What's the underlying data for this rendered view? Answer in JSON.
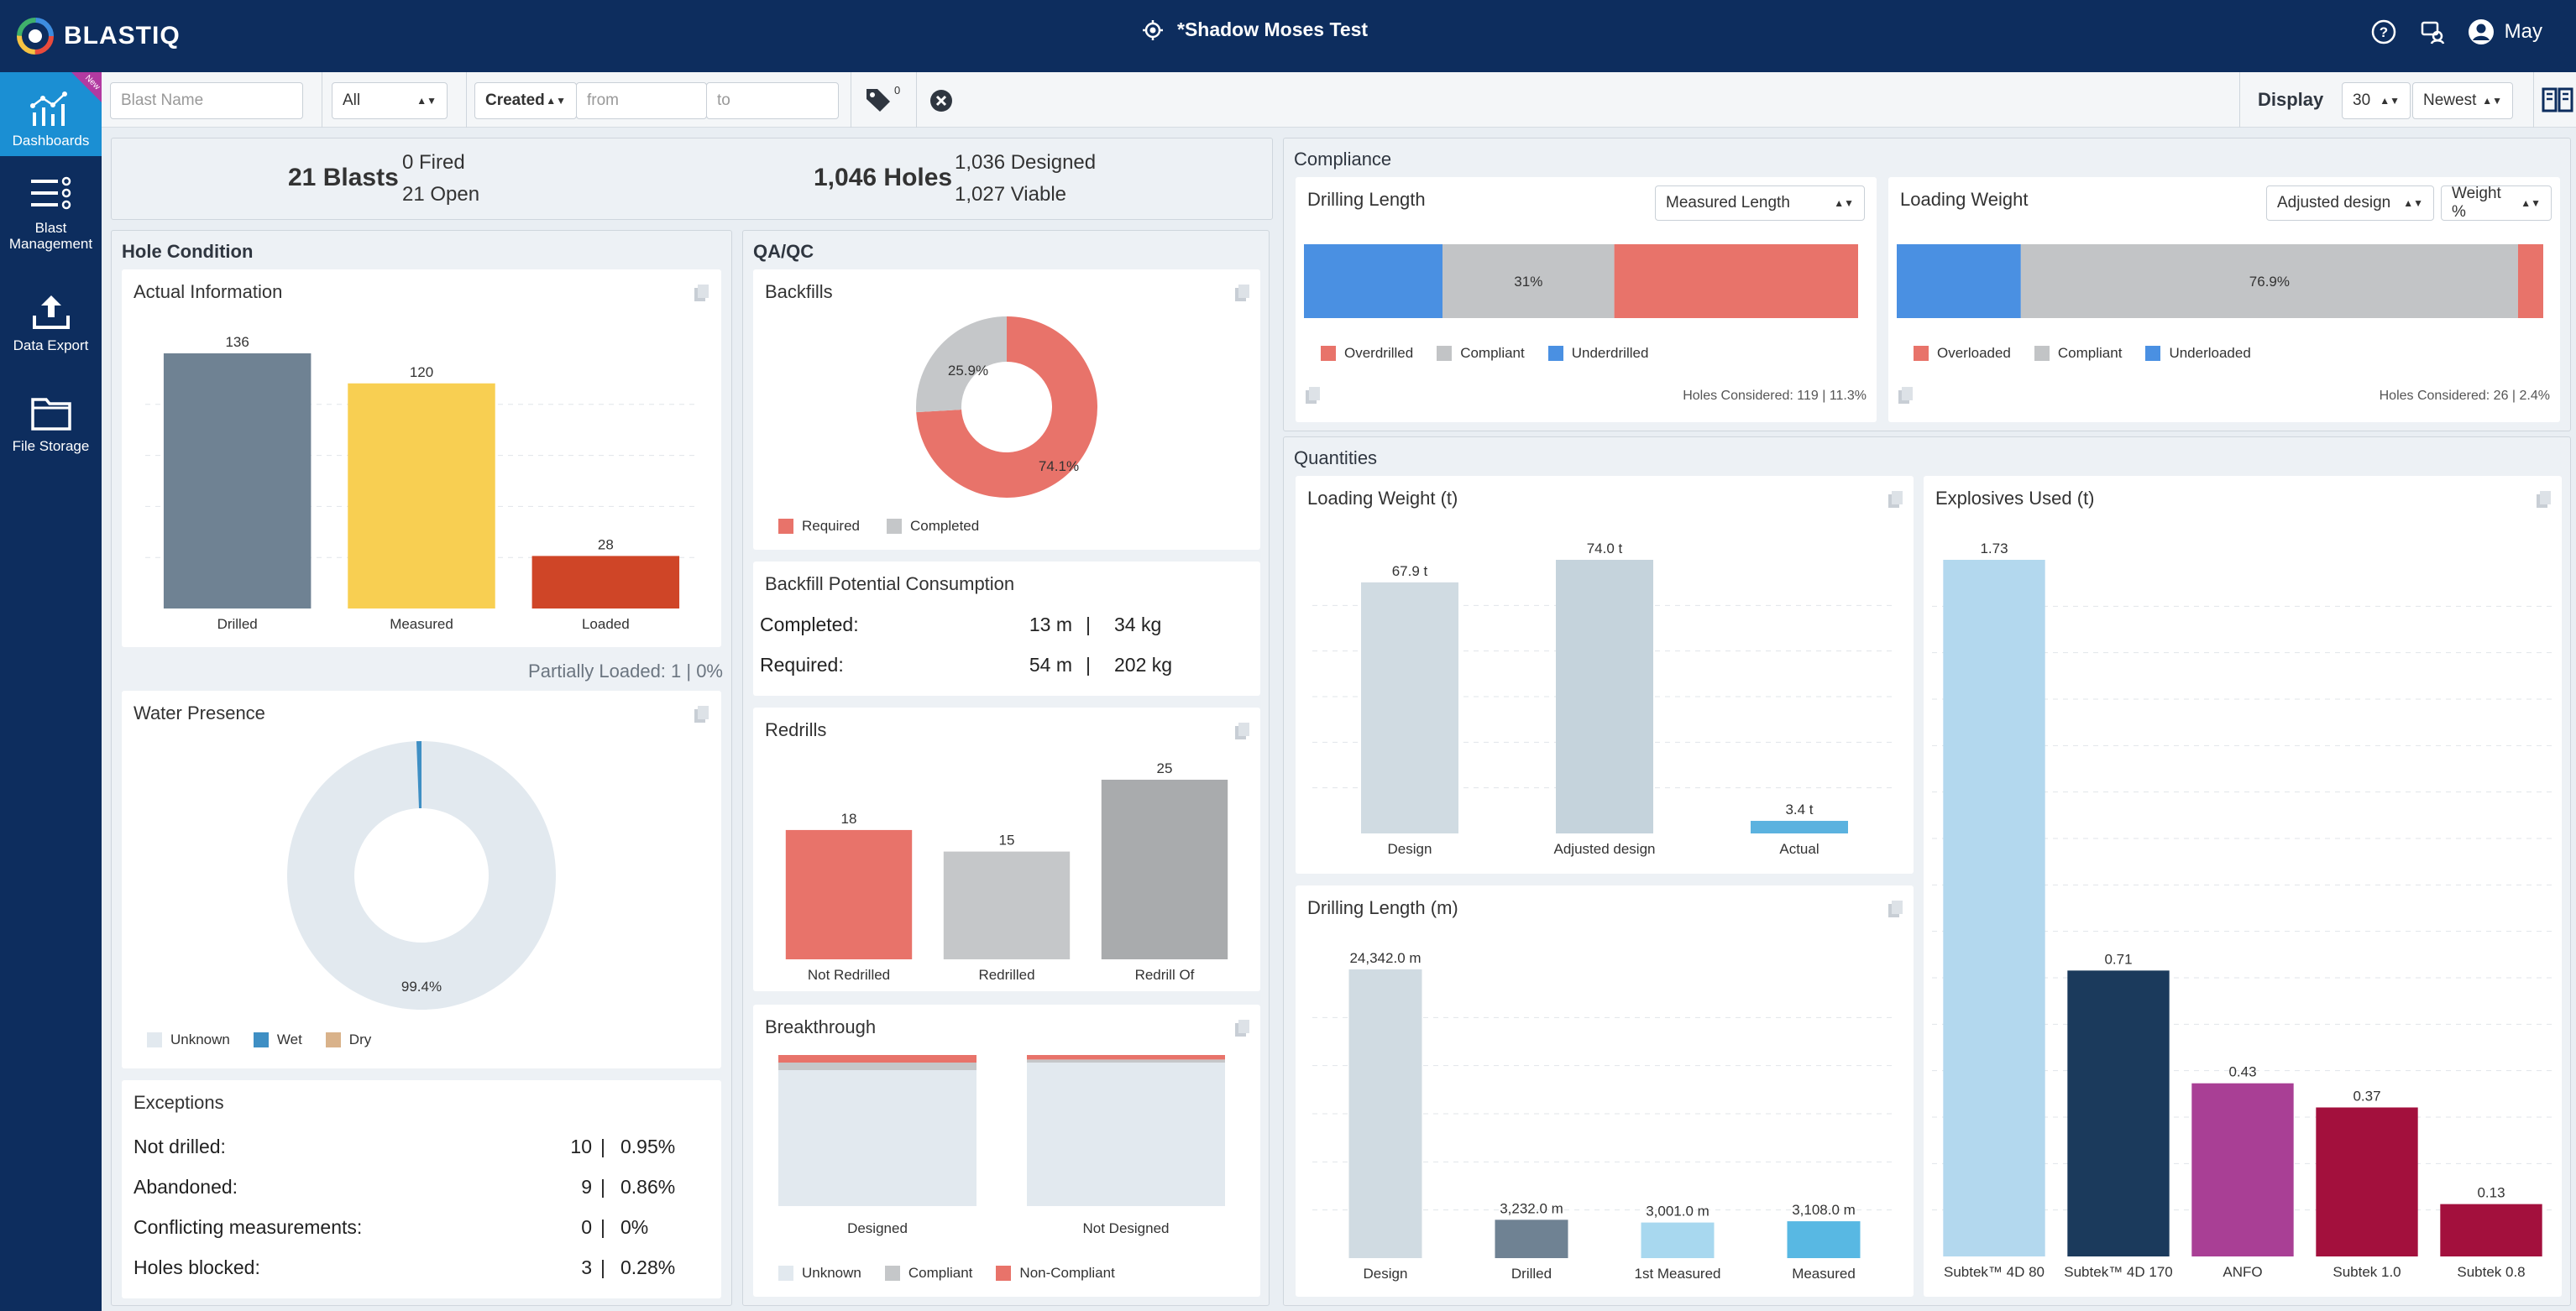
{
  "app": {
    "logo_text": "BLASTIQ",
    "project": "*Shadow Moses Test",
    "user": "May"
  },
  "icons": {
    "logo": "blastiq-logo-icon",
    "project": "target-icon",
    "help": "help-icon",
    "support": "support-icon",
    "user": "user-avatar-icon"
  },
  "colors": {
    "navy": "#0d2d5e",
    "active": "#1b8fd3",
    "red": "#e8736a",
    "blue": "#4a90e2",
    "grey": "#c2c4c6"
  },
  "sidebar": {
    "items": [
      {
        "label": "Dashboards",
        "icon": "dashboard-chart-icon",
        "badge": "New"
      },
      {
        "label": "Blast Management",
        "icon": "list-management-icon"
      },
      {
        "label": "Data Export",
        "icon": "upload-icon"
      },
      {
        "label": "File Storage",
        "icon": "folder-icon"
      }
    ]
  },
  "filters": {
    "blast_name_placeholder": "Blast Name",
    "status_value": "All",
    "date_field": "Created",
    "from_placeholder": "from",
    "to_placeholder": "to",
    "tag_count": "0",
    "display_label": "Display",
    "display_count": "30",
    "sort": "Newest"
  },
  "summary": {
    "blasts": "21 Blasts",
    "fired": "0 Fired",
    "open": "21 Open",
    "holes": "1,046 Holes",
    "designed": "1,036 Designed",
    "viable": "1,027 Viable"
  },
  "hole_condition": {
    "title": "Hole Condition",
    "actual_title": "Actual Information",
    "partial_note": "Partially Loaded: 1 | 0%",
    "water_title": "Water Presence",
    "water_legend": [
      "Unknown",
      "Wet",
      "Dry"
    ],
    "water_label": "99.4%",
    "exceptions_title": "Exceptions",
    "exceptions": [
      {
        "label": "Not drilled:",
        "count": "10",
        "pct": "0.95%"
      },
      {
        "label": "Abandoned:",
        "count": "9",
        "pct": "0.86%"
      },
      {
        "label": "Conflicting measurements:",
        "count": "0",
        "pct": "0%"
      },
      {
        "label": "Holes blocked:",
        "count": "3",
        "pct": "0.28%"
      }
    ]
  },
  "qaqc": {
    "title": "QA/QC",
    "backfills_title": "Backfills",
    "backfill_legend": [
      "Required",
      "Completed"
    ],
    "backfill_labels": [
      "74.1%",
      "25.9%"
    ],
    "consumption_title": "Backfill Potential Consumption",
    "consumption": [
      {
        "label": "Completed:",
        "m": "13 m",
        "kg": "34 kg"
      },
      {
        "label": "Required:",
        "m": "54 m",
        "kg": "202 kg"
      }
    ],
    "redrills_title": "Redrills",
    "breakthrough_title": "Breakthrough",
    "breakthrough_legend": [
      "Unknown",
      "Compliant",
      "Non-Compliant"
    ]
  },
  "compliance": {
    "title": "Compliance",
    "drilling": {
      "title": "Drilling Length",
      "select": "Measured Length",
      "label": "31%",
      "legend": [
        "Overdrilled",
        "Compliant",
        "Underdrilled"
      ],
      "footer": "Holes Considered: 119 | 11.3%"
    },
    "loading": {
      "title": "Loading Weight",
      "select": "Adjusted design",
      "select2": "Weight %",
      "label": "76.9%",
      "legend": [
        "Overloaded",
        "Compliant",
        "Underloaded"
      ],
      "footer": "Holes Considered: 26 | 2.4%"
    }
  },
  "quantities": {
    "title": "Quantities",
    "loading_title": "Loading Weight (t)",
    "drilling_title": "Drilling Length (m)",
    "explosives_title": "Explosives Used (t)"
  },
  "chart_data": [
    {
      "type": "bar",
      "title": "Actual Information",
      "categories": [
        "Drilled",
        "Measured",
        "Loaded"
      ],
      "values": [
        136,
        120,
        28
      ],
      "colors": [
        "#6f8293",
        "#f8cf52",
        "#cf4527"
      ]
    },
    {
      "type": "pie",
      "title": "Water Presence",
      "categories": [
        "Unknown",
        "Wet",
        "Dry"
      ],
      "values": [
        99.4,
        0.6,
        0
      ],
      "colors": [
        "#e2e9ef",
        "#3f8fc4",
        "#d9b28a"
      ]
    },
    {
      "type": "pie",
      "title": "Backfills",
      "categories": [
        "Required",
        "Completed"
      ],
      "values": [
        74.1,
        25.9
      ],
      "colors": [
        "#e8736a",
        "#c5c7c9"
      ]
    },
    {
      "type": "bar",
      "title": "Redrills",
      "categories": [
        "Not Redrilled",
        "Redrilled",
        "Redrill Of"
      ],
      "values": [
        18,
        15,
        25
      ],
      "colors": [
        "#e8736a",
        "#c5c7c9",
        "#a9abad"
      ]
    },
    {
      "type": "bar",
      "title": "Breakthrough",
      "categories": [
        "Designed",
        "Not Designed"
      ],
      "series": [
        {
          "name": "Unknown",
          "values": [
            90,
            95
          ]
        },
        {
          "name": "Compliant",
          "values": [
            5,
            2
          ]
        },
        {
          "name": "Non-Compliant",
          "values": [
            5,
            3
          ]
        }
      ],
      "colors": [
        "#e2e9ef",
        "#c5c7c9",
        "#e8736a"
      ]
    },
    {
      "type": "bar",
      "title": "Drilling Length",
      "categories": [
        "Underdrilled",
        "Compliant",
        "Overdrilled"
      ],
      "values": [
        25,
        31,
        44
      ],
      "colors": [
        "#4a90e2",
        "#c2c4c6",
        "#e8736a"
      ]
    },
    {
      "type": "bar",
      "title": "Loading Weight",
      "categories": [
        "Underloaded",
        "Compliant",
        "Overloaded"
      ],
      "values": [
        19.2,
        76.9,
        3.9
      ],
      "colors": [
        "#4a90e2",
        "#c2c4c6",
        "#e8736a"
      ]
    },
    {
      "type": "bar",
      "title": "Loading Weight (t)",
      "categories": [
        "Design",
        "Adjusted design",
        "Actual"
      ],
      "values": [
        67.9,
        74.0,
        3.4
      ],
      "labels": [
        "67.9 t",
        "74.0 t",
        "3.4 t"
      ],
      "colors": [
        "#d0dbe2",
        "#c5d3dc",
        "#5bb2df"
      ]
    },
    {
      "type": "bar",
      "title": "Drilling Length (m)",
      "categories": [
        "Design",
        "Drilled",
        "1st Measured",
        "Measured"
      ],
      "values": [
        24342,
        3232,
        3001,
        3108
      ],
      "labels": [
        "24,342.0 m",
        "3,232.0 m",
        "3,001.0 m",
        "3,108.0 m"
      ],
      "colors": [
        "#d0dbe2",
        "#6f8293",
        "#a8d8ef",
        "#58b8e3"
      ]
    },
    {
      "type": "bar",
      "title": "Explosives Used (t)",
      "categories": [
        "Subtek™ 4D 80",
        "Subtek™ 4D 170",
        "ANFO",
        "Subtek 1.0",
        "Subtek 0.8"
      ],
      "values": [
        1.73,
        0.71,
        0.43,
        0.37,
        0.13
      ],
      "labels": [
        "1.73",
        "0.71",
        "0.43",
        "0.37",
        "0.13"
      ],
      "colors": [
        "#b3d8ee",
        "#1b3a5c",
        "#a93f95",
        "#a3103d",
        "#a3103d"
      ]
    }
  ]
}
